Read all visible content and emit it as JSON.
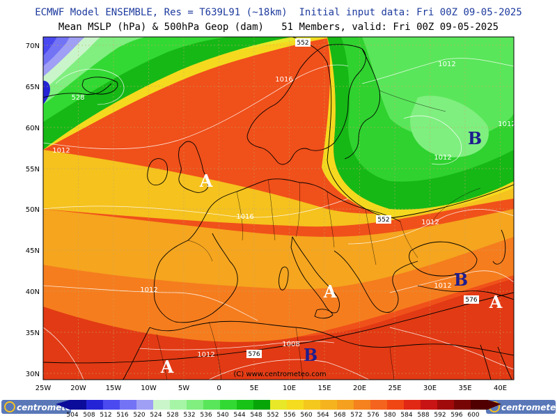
{
  "header": {
    "line1": "ECMWF Model ENSEMBLE, Res = T639L91 (~18km)  Initial input data: Fri 00Z 09-05-2025",
    "line2": "Mean MSLP (hPa) & 500hPa Geop (dam)   51 Members, valid: Fri 00Z 09-05-2025"
  },
  "map": {
    "lon_labels": [
      "25W",
      "20W",
      "15W",
      "10W",
      "5W",
      "0",
      "5E",
      "10E",
      "15E",
      "20E",
      "25E",
      "30E",
      "35E",
      "40E"
    ],
    "lat_labels": [
      "70N",
      "65N",
      "60N",
      "55N",
      "50N",
      "45N",
      "40N",
      "35N",
      "30N"
    ],
    "geop_labels": [
      "552",
      "528",
      "552",
      "576",
      "576"
    ],
    "pressure_labels": [
      "1012",
      "1016",
      "1012",
      "1016",
      "1012",
      "1012",
      "1012",
      "1008",
      "1012",
      "1012",
      "1012"
    ],
    "high_label": "A",
    "low_label": "B",
    "copyright": "(C) www.centrometeo.com",
    "colors": {
      "low_letter": "#1d1d8f",
      "high_letter": "#ffffff"
    }
  },
  "colorbar": {
    "labels": [
      "504",
      "508",
      "512",
      "516",
      "520",
      "524",
      "528",
      "532",
      "536",
      "540",
      "544",
      "548",
      "552",
      "556",
      "560",
      "564",
      "568",
      "572",
      "576",
      "580",
      "584",
      "588",
      "592",
      "596",
      "600"
    ],
    "colors": [
      "#0c0c9a",
      "#2424d6",
      "#4a4af0",
      "#7373f5",
      "#9f9ff5",
      "#caf5ca",
      "#a6f5a6",
      "#80ef80",
      "#5ae65a",
      "#33d933",
      "#16c316",
      "#08a508",
      "#e8e828",
      "#f5dc1e",
      "#f5c81e",
      "#f5b41e",
      "#f5a01e",
      "#f5821e",
      "#f5641e",
      "#f04614",
      "#e12814",
      "#c81414",
      "#a00a0a",
      "#780505",
      "#500000"
    ],
    "logo_text": "centrometeo"
  }
}
